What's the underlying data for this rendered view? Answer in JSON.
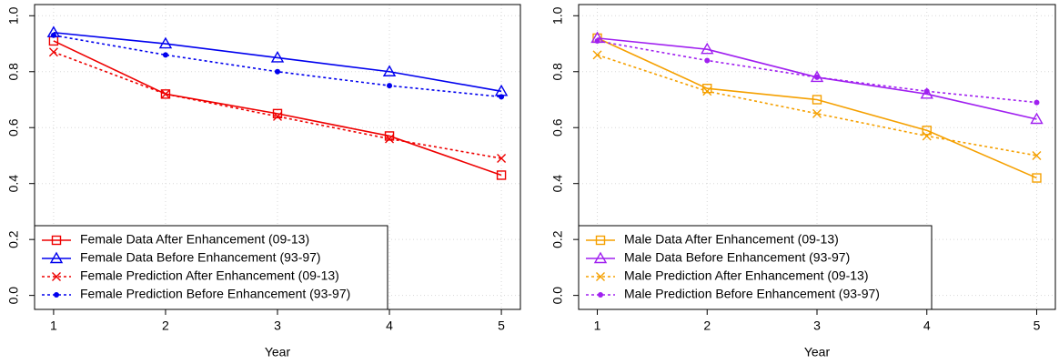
{
  "chart_data": [
    {
      "type": "line",
      "xlabel": "Year",
      "x": [
        1,
        2,
        3,
        4,
        5
      ],
      "xlim": [
        0.83,
        5.17
      ],
      "xticks": [
        1,
        2,
        3,
        4,
        5
      ],
      "ylim": [
        -0.05,
        1.04
      ],
      "yticks": [
        {
          "value": 0,
          "label": "0.0"
        },
        0.2,
        0.4,
        0.6,
        0.8,
        {
          "value": 1,
          "label": "1.0"
        }
      ],
      "grid": true,
      "legend": "bottom-left",
      "series": [
        {
          "name": "Female Data After Enhancement (09-13)",
          "color": "#ee0000",
          "linestyle": "solid",
          "marker": "square",
          "values": [
            0.91,
            0.72,
            0.65,
            0.57,
            0.43
          ]
        },
        {
          "name": "Female Data Before Enhancement (93-97)",
          "color": "#0000ee",
          "linestyle": "solid",
          "marker": "triangle",
          "values": [
            0.94,
            0.9,
            0.85,
            0.8,
            0.73
          ]
        },
        {
          "name": "Female Prediction After Enhancement (09-13)",
          "color": "#ee0000",
          "linestyle": "dotted",
          "marker": "x",
          "values": [
            0.87,
            0.72,
            0.64,
            0.56,
            0.49
          ]
        },
        {
          "name": "Female Prediction Before Enhancement (93-97)",
          "color": "#0000ee",
          "linestyle": "dotted",
          "marker": "dot",
          "values": [
            0.93,
            0.86,
            0.8,
            0.75,
            0.71
          ]
        }
      ]
    },
    {
      "type": "line",
      "xlabel": "Year",
      "x": [
        1,
        2,
        3,
        4,
        5
      ],
      "xlim": [
        0.83,
        5.17
      ],
      "xticks": [
        1,
        2,
        3,
        4,
        5
      ],
      "ylim": [
        -0.05,
        1.04
      ],
      "yticks": [
        {
          "value": 0,
          "label": "0.0"
        },
        0.2,
        0.4,
        0.6,
        0.8,
        {
          "value": 1,
          "label": "1.0"
        }
      ],
      "grid": true,
      "legend": "bottom-left",
      "series": [
        {
          "name": "Male Data After Enhancement (09-13)",
          "color": "#f5a000",
          "linestyle": "solid",
          "marker": "square",
          "values": [
            0.92,
            0.74,
            0.7,
            0.59,
            0.42
          ]
        },
        {
          "name": "Male Data Before Enhancement (93-97)",
          "color": "#a020f0",
          "linestyle": "solid",
          "marker": "triangle",
          "values": [
            0.92,
            0.88,
            0.78,
            0.72,
            0.63
          ]
        },
        {
          "name": "Male Prediction After Enhancement (09-13)",
          "color": "#f5a000",
          "linestyle": "dotted",
          "marker": "x",
          "values": [
            0.86,
            0.73,
            0.65,
            0.57,
            0.5
          ]
        },
        {
          "name": "Male Prediction Before Enhancement (93-97)",
          "color": "#a020f0",
          "linestyle": "dotted",
          "marker": "dot",
          "values": [
            0.91,
            0.84,
            0.78,
            0.73,
            0.69
          ]
        }
      ]
    }
  ]
}
